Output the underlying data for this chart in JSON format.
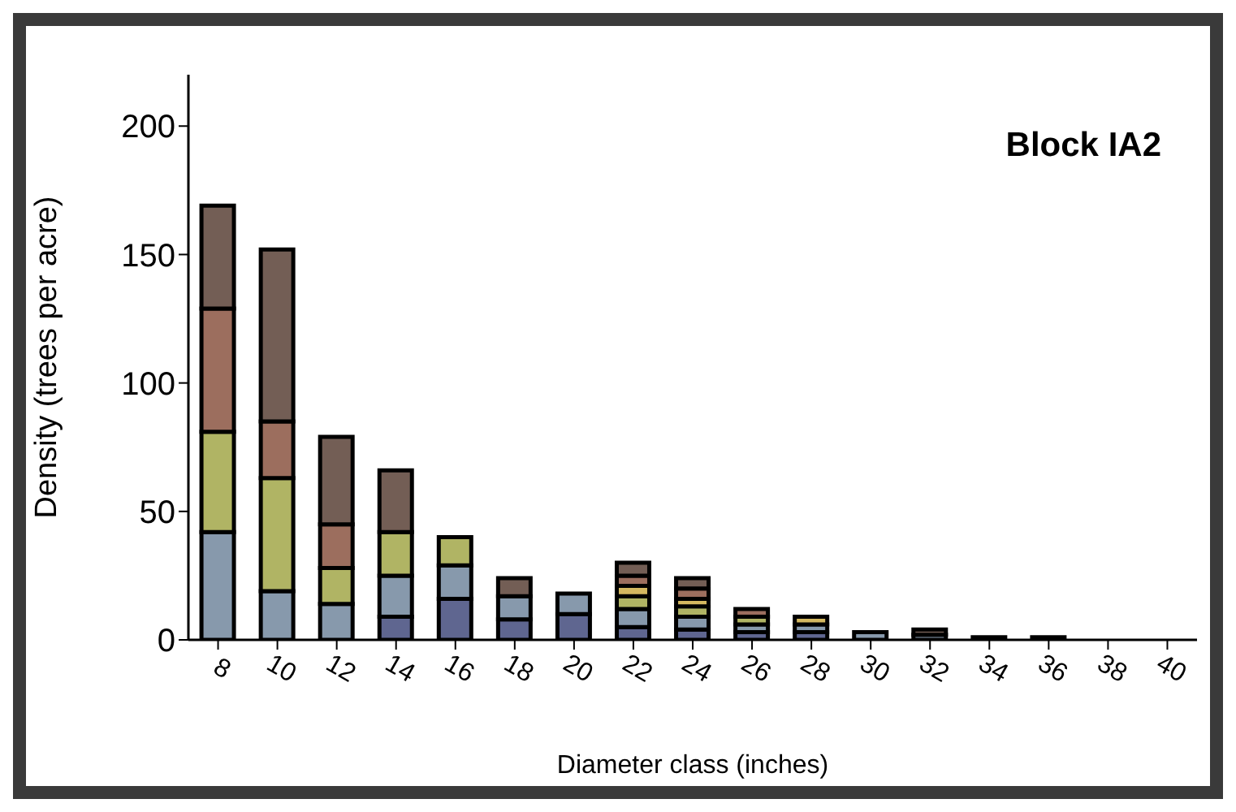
{
  "chart_data": {
    "type": "bar",
    "stacked": true,
    "xlabel": "Diameter class (inches)",
    "ylabel": "Density (trees per acre)",
    "annotations": [
      "Block IA2"
    ],
    "categories": [
      "8",
      "10",
      "12",
      "14",
      "16",
      "18",
      "20",
      "22",
      "24",
      "26",
      "28",
      "30",
      "32",
      "34",
      "36",
      "38",
      "40"
    ],
    "ylim": [
      0,
      220
    ],
    "yticks": [
      0,
      50,
      100,
      150,
      200
    ],
    "grid": false,
    "legend": false,
    "series": [
      {
        "color": "#5f6690",
        "values": [
          0,
          0,
          0,
          9,
          16,
          8,
          10,
          5,
          4,
          3,
          3,
          null,
          null,
          null,
          1,
          0,
          0
        ]
      },
      {
        "color": "#8799ac",
        "values": [
          42,
          19,
          14,
          16,
          13,
          9,
          8,
          7,
          5,
          3,
          3,
          3,
          2,
          1,
          0,
          0,
          0
        ]
      },
      {
        "color": "#b0b464",
        "values": [
          39,
          44,
          14,
          17,
          11,
          0,
          0,
          5,
          4,
          3,
          0,
          0,
          0,
          0,
          0,
          0,
          0
        ]
      },
      {
        "color": "#d4b860",
        "values": [
          0,
          0,
          0,
          0,
          0,
          0,
          0,
          4,
          3,
          0,
          3,
          0,
          0,
          0,
          0,
          0,
          0
        ]
      },
      {
        "color": "#9c6e5e",
        "values": [
          48,
          22,
          17,
          0,
          0,
          0,
          0,
          4,
          4,
          3,
          0,
          0,
          0,
          0,
          0,
          0,
          0
        ]
      },
      {
        "color": "#735e55",
        "values": [
          40,
          67,
          34,
          24,
          0,
          7,
          0,
          5,
          4,
          0,
          0,
          0,
          2,
          0,
          0,
          0,
          0
        ]
      }
    ]
  }
}
